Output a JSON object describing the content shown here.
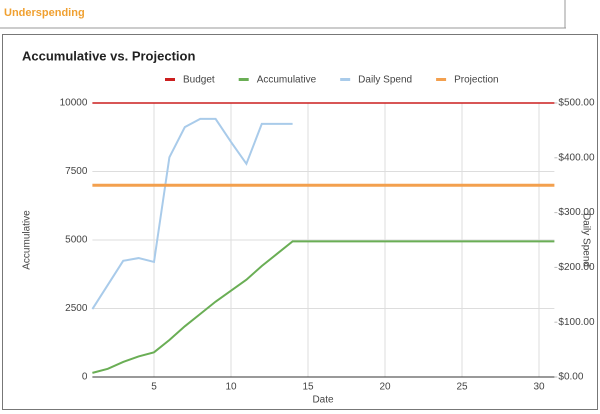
{
  "header": {
    "title": "Underspending"
  },
  "chart_data": {
    "type": "line",
    "title": "Accumulative vs. Projection",
    "x_label": "Date",
    "y_label": "Accumulative",
    "y2_label": "Daily Spend",
    "x": [
      1,
      2,
      3,
      4,
      5,
      6,
      7,
      8,
      9,
      10,
      11,
      12,
      13,
      14,
      15,
      16,
      17,
      18,
      19,
      20,
      21,
      22,
      23,
      24,
      25,
      26,
      27,
      28,
      29,
      30,
      31
    ],
    "series": [
      {
        "name": "Budget",
        "color": "#cc1f1f",
        "values": [
          10000,
          10000,
          10000,
          10000,
          10000,
          10000,
          10000,
          10000,
          10000,
          10000,
          10000,
          10000,
          10000,
          10000,
          10000,
          10000,
          10000,
          10000,
          10000,
          10000,
          10000,
          10000,
          10000,
          10000,
          10000,
          10000,
          10000,
          10000,
          10000,
          10000,
          10000
        ]
      },
      {
        "name": "Accumulative",
        "color": "#6aae55",
        "values": [
          150,
          300,
          550,
          750,
          900,
          1350,
          1850,
          2300,
          2750,
          3150,
          3550,
          4050,
          4500,
          4950,
          4950,
          4950,
          4950,
          4950,
          4950,
          4950,
          4950,
          4950,
          4950,
          4950,
          4950,
          4950,
          4950,
          4950,
          4950,
          4950,
          4950
        ]
      },
      {
        "name": "Daily Spend",
        "color": "#a9cbea",
        "axis": "y2",
        "values": [
          124,
          168,
          212,
          217,
          210,
          401,
          456,
          471,
          471,
          429,
          389,
          462,
          462,
          462,
          null,
          null,
          null,
          null,
          null,
          null,
          null,
          null,
          null,
          null,
          null,
          null,
          null,
          null,
          null,
          null,
          null
        ]
      },
      {
        "name": "Projection",
        "color": "#f3a04e",
        "values": [
          7000,
          7000,
          7000,
          7000,
          7000,
          7000,
          7000,
          7000,
          7000,
          7000,
          7000,
          7000,
          7000,
          7000,
          7000,
          7000,
          7000,
          7000,
          7000,
          7000,
          7000,
          7000,
          7000,
          7000,
          7000,
          7000,
          7000,
          7000,
          7000,
          7000,
          7000
        ]
      }
    ],
    "xlim": [
      1,
      31
    ],
    "xticks": [
      5,
      10,
      15,
      20,
      25,
      30
    ],
    "ylim": [
      0,
      10000
    ],
    "yticks": [
      0,
      2500,
      5000,
      7500,
      10000
    ],
    "y2lim": [
      0,
      500
    ],
    "y2ticks": [
      {
        "value": 0,
        "label": "$0.00"
      },
      {
        "value": 100,
        "label": "$100.00"
      },
      {
        "value": 200,
        "label": "$200.00"
      },
      {
        "value": 300,
        "label": "$300.00"
      },
      {
        "value": 400,
        "label": "$400.00"
      },
      {
        "value": 500,
        "label": "$500.00"
      }
    ],
    "grid": true,
    "legend": "top"
  }
}
